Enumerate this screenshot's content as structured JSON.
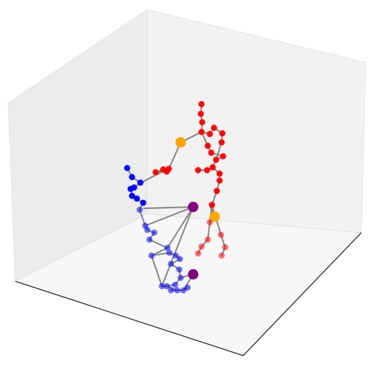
{
  "chart_data": {
    "type": "scatter",
    "projection": "3d",
    "title": "",
    "xlabel": "",
    "ylabel": "",
    "zlabel": "",
    "axis_ticks_visible": false,
    "grid": false,
    "pane_colors": {
      "left": "#ececec",
      "back": "#f2f2f2",
      "floor": "#f7f7f7",
      "edges": "#e2e2e2",
      "front_axes": "#222222"
    },
    "bone_color": "#7f7f7f",
    "series": [
      {
        "color": "#ff0000",
        "points": [
          [
            290,
            150
          ],
          [
            289,
            164
          ],
          [
            291,
            176
          ],
          [
            290,
            190
          ],
          [
            302,
            193
          ],
          [
            308,
            184
          ],
          [
            320,
            192
          ],
          [
            319,
            205
          ],
          [
            299,
            210
          ],
          [
            304,
            220
          ],
          [
            321,
            225
          ],
          [
            311,
            230
          ],
          [
            306,
            241
          ],
          [
            298,
            245
          ],
          [
            285,
            245
          ],
          [
            316,
            250
          ],
          [
            316,
            260
          ],
          [
            312,
            275
          ],
          [
            305,
            295
          ],
          [
            302,
            320
          ],
          [
            299,
            345
          ],
          [
            290,
            355
          ],
          [
            285,
            365
          ],
          [
            318,
            338
          ],
          [
            324,
            356
          ],
          [
            319,
            368
          ],
          [
            243,
            243
          ],
          [
            235,
            244
          ],
          [
            224,
            248
          ],
          [
            240,
            247
          ]
        ],
        "edges": [
          [
            0,
            1
          ],
          [
            1,
            2
          ],
          [
            2,
            3
          ],
          [
            3,
            4
          ],
          [
            4,
            5
          ],
          [
            5,
            6
          ],
          [
            6,
            7
          ],
          [
            7,
            11
          ],
          [
            3,
            8
          ],
          [
            8,
            9
          ],
          [
            9,
            10
          ],
          [
            10,
            11
          ],
          [
            11,
            12
          ],
          [
            12,
            13
          ],
          [
            13,
            14
          ],
          [
            12,
            15
          ],
          [
            15,
            16
          ],
          [
            16,
            17
          ],
          [
            17,
            18
          ],
          [
            18,
            19
          ],
          [
            19,
            20
          ],
          [
            20,
            21
          ],
          [
            21,
            22
          ],
          [
            18,
            23
          ],
          [
            23,
            24
          ],
          [
            24,
            25
          ],
          [
            26,
            27
          ],
          [
            27,
            28
          ],
          [
            28,
            29
          ]
        ]
      },
      {
        "color": "#0000ff",
        "points": [
          [
            183,
            242
          ],
          [
            190,
            255
          ],
          [
            202,
            263
          ],
          [
            193,
            270
          ],
          [
            188,
            272
          ],
          [
            190,
            282
          ],
          [
            197,
            286
          ],
          [
            206,
            292
          ],
          [
            201,
            302
          ],
          [
            209,
            325
          ],
          [
            212,
            331
          ],
          [
            222,
            335
          ],
          [
            215,
            345
          ],
          [
            241,
            357
          ],
          [
            218,
            368
          ],
          [
            244,
            364
          ],
          [
            253,
            368
          ],
          [
            259,
            373
          ],
          [
            246,
            380
          ],
          [
            258,
            388
          ],
          [
            260,
            400
          ],
          [
            252,
            410
          ],
          [
            240,
            412
          ],
          [
            255,
            418
          ],
          [
            246,
            418
          ],
          [
            264,
            418
          ],
          [
            270,
            414
          ],
          [
            233,
            412
          ]
        ],
        "edges": [
          [
            0,
            1
          ],
          [
            1,
            2
          ],
          [
            2,
            3
          ],
          [
            3,
            4
          ],
          [
            4,
            5
          ],
          [
            5,
            6
          ],
          [
            6,
            7
          ],
          [
            7,
            8
          ],
          [
            8,
            9
          ],
          [
            9,
            10
          ],
          [
            10,
            11
          ],
          [
            11,
            12
          ],
          [
            12,
            13
          ],
          [
            13,
            14
          ],
          [
            14,
            15
          ],
          [
            15,
            16
          ],
          [
            16,
            17
          ],
          [
            17,
            18
          ],
          [
            18,
            19
          ],
          [
            19,
            20
          ],
          [
            20,
            21
          ],
          [
            21,
            22
          ],
          [
            22,
            23
          ],
          [
            23,
            24
          ],
          [
            24,
            25
          ],
          [
            25,
            26
          ],
          [
            14,
            27
          ],
          [
            27,
            22
          ]
        ]
      },
      {
        "color": "#ffa500",
        "points": [
          [
            260,
            205
          ],
          [
            309,
            312
          ]
        ]
      },
      {
        "color": "#800080",
        "points": [
          [
            278,
            298
          ],
          [
            278,
            395
          ]
        ]
      }
    ],
    "connector_edges": [
      [
        [
          260,
          205
        ],
        [
          243,
          243
        ]
      ],
      [
        [
          260,
          205
        ],
        [
          290,
          190
        ]
      ],
      [
        [
          203,
          263
        ],
        [
          232,
          248
        ]
      ],
      [
        [
          207,
          300
        ],
        [
          278,
          298
        ]
      ],
      [
        [
          209,
          325
        ],
        [
          278,
          298
        ]
      ],
      [
        [
          278,
          298
        ],
        [
          233,
          412
        ]
      ],
      [
        [
          278,
          298
        ],
        [
          241,
          357
        ]
      ],
      [
        [
          309,
          312
        ],
        [
          303,
          298
        ]
      ],
      [
        [
          309,
          312
        ],
        [
          302,
          320
        ]
      ],
      [
        [
          278,
          395
        ],
        [
          260,
          400
        ]
      ],
      [
        [
          278,
          395
        ],
        [
          264,
          418
        ]
      ]
    ]
  }
}
